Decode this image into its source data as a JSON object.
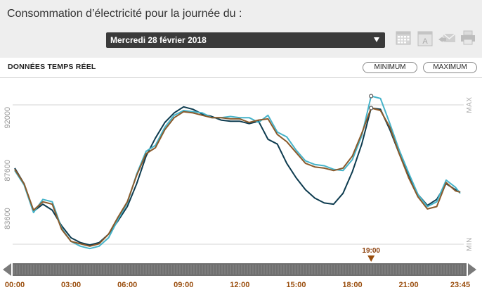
{
  "header": {
    "title": "Consommation d’électricité pour la journée du :",
    "date_selected": "Mercredi 28 février 2018"
  },
  "toolbar": {
    "icons": [
      "calendar-icon",
      "calendar-a-icon",
      "email-icon",
      "print-icon"
    ]
  },
  "panel": {
    "label": "DONNÉES TEMPS RÉEL",
    "minimum_label": "MINIMUM",
    "maximum_label": "MAXIMUM"
  },
  "colors": {
    "series_dark": "#0d3b4f",
    "series_light": "#46b3c9",
    "series_brown": "#8a5a2b",
    "time_accent": "#9a4e0e"
  },
  "chart_data": {
    "type": "line",
    "ylabel": "",
    "y_ticks": [
      "83600",
      "87600",
      "92000"
    ],
    "y_tick_values": [
      83600,
      87600,
      92000
    ],
    "y_edge_labels": {
      "max": "MAX",
      "min": "MIN"
    },
    "ylim": [
      80000,
      95000
    ],
    "x_ticks": [
      "00:00",
      "03:00",
      "06:00",
      "09:00",
      "12:00",
      "15:00",
      "18:00",
      "21:00",
      "23:45"
    ],
    "x_tick_hours": [
      0,
      3,
      6,
      9,
      12,
      15,
      18,
      21,
      23.75
    ],
    "xlim_hours": [
      0,
      23.75
    ],
    "marker": {
      "label": "19:00",
      "hour": 19
    },
    "series": [
      {
        "color_key": "series_dark",
        "points": [
          [
            0,
            87800
          ],
          [
            0.5,
            86500
          ],
          [
            1,
            84200
          ],
          [
            1.5,
            84800
          ],
          [
            2,
            84300
          ],
          [
            2.5,
            83000
          ],
          [
            3,
            82000
          ],
          [
            3.5,
            81600
          ],
          [
            4,
            81400
          ],
          [
            4.5,
            81600
          ],
          [
            5,
            82300
          ],
          [
            5.5,
            83400
          ],
          [
            6,
            84600
          ],
          [
            6.5,
            86500
          ],
          [
            7,
            88800
          ],
          [
            7.5,
            90300
          ],
          [
            8,
            91600
          ],
          [
            8.5,
            92400
          ],
          [
            9,
            92900
          ],
          [
            9.5,
            92700
          ],
          [
            10,
            92300
          ],
          [
            10.5,
            92100
          ],
          [
            11,
            91800
          ],
          [
            11.5,
            91700
          ],
          [
            12,
            91700
          ],
          [
            12.5,
            91500
          ],
          [
            13,
            91700
          ],
          [
            13.5,
            90200
          ],
          [
            14,
            89800
          ],
          [
            14.5,
            88200
          ],
          [
            15,
            87000
          ],
          [
            15.5,
            86000
          ],
          [
            16,
            85300
          ],
          [
            16.5,
            84900
          ],
          [
            17,
            84800
          ],
          [
            17.5,
            85700
          ],
          [
            18,
            87500
          ],
          [
            18.5,
            89800
          ],
          [
            19,
            92800
          ],
          [
            19.5,
            92700
          ],
          [
            20,
            91000
          ],
          [
            20.5,
            89000
          ],
          [
            21,
            87200
          ],
          [
            21.5,
            85600
          ],
          [
            22,
            84700
          ],
          [
            22.5,
            85200
          ],
          [
            23,
            86500
          ],
          [
            23.5,
            86000
          ],
          [
            23.75,
            85800
          ]
        ]
      },
      {
        "color_key": "series_light",
        "points": [
          [
            0,
            87600
          ],
          [
            0.5,
            86400
          ],
          [
            1,
            84100
          ],
          [
            1.5,
            85200
          ],
          [
            2,
            85000
          ],
          [
            2.5,
            82800
          ],
          [
            3,
            81700
          ],
          [
            3.5,
            81300
          ],
          [
            4,
            81100
          ],
          [
            4.5,
            81300
          ],
          [
            5,
            82000
          ],
          [
            5.5,
            83500
          ],
          [
            6,
            84900
          ],
          [
            6.5,
            87300
          ],
          [
            7,
            89200
          ],
          [
            7.5,
            89700
          ],
          [
            8,
            91200
          ],
          [
            8.5,
            92200
          ],
          [
            9,
            92600
          ],
          [
            9.5,
            92500
          ],
          [
            10,
            92400
          ],
          [
            10.5,
            92000
          ],
          [
            11,
            92000
          ],
          [
            11.5,
            92100
          ],
          [
            12,
            92000
          ],
          [
            12.5,
            92000
          ],
          [
            13,
            91600
          ],
          [
            13.5,
            92200
          ],
          [
            14,
            90800
          ],
          [
            14.5,
            90400
          ],
          [
            15,
            89300
          ],
          [
            15.5,
            88400
          ],
          [
            16,
            88100
          ],
          [
            16.5,
            88000
          ],
          [
            17,
            87700
          ],
          [
            17.5,
            87600
          ],
          [
            18,
            88500
          ],
          [
            18.5,
            90500
          ],
          [
            19,
            93800
          ],
          [
            19.5,
            93600
          ],
          [
            20,
            91500
          ],
          [
            20.5,
            89300
          ],
          [
            21,
            87400
          ],
          [
            21.5,
            85600
          ],
          [
            22,
            84600
          ],
          [
            22.5,
            85000
          ],
          [
            23,
            86800
          ],
          [
            23.5,
            86200
          ],
          [
            23.75,
            85700
          ]
        ]
      },
      {
        "color_key": "series_brown",
        "points": [
          [
            0,
            87700
          ],
          [
            0.5,
            86500
          ],
          [
            1,
            84300
          ],
          [
            1.5,
            85000
          ],
          [
            2,
            84800
          ],
          [
            2.5,
            82700
          ],
          [
            3,
            81700
          ],
          [
            3.5,
            81500
          ],
          [
            4,
            81300
          ],
          [
            4.5,
            81500
          ],
          [
            5,
            82300
          ],
          [
            5.5,
            83700
          ],
          [
            6,
            85000
          ],
          [
            6.5,
            87200
          ],
          [
            7,
            89000
          ],
          [
            7.5,
            89500
          ],
          [
            8,
            91000
          ],
          [
            8.5,
            92000
          ],
          [
            9,
            92500
          ],
          [
            9.5,
            92400
          ],
          [
            10,
            92200
          ],
          [
            10.5,
            92000
          ],
          [
            11,
            92000
          ],
          [
            11.5,
            91900
          ],
          [
            12,
            91900
          ],
          [
            12.5,
            91600
          ],
          [
            13,
            91800
          ],
          [
            13.5,
            91900
          ],
          [
            14,
            90600
          ],
          [
            14.5,
            90000
          ],
          [
            15,
            89100
          ],
          [
            15.5,
            88200
          ],
          [
            16,
            87900
          ],
          [
            16.5,
            87800
          ],
          [
            17,
            87600
          ],
          [
            17.5,
            87800
          ],
          [
            18,
            88800
          ],
          [
            18.5,
            90700
          ],
          [
            19,
            92800
          ],
          [
            19.5,
            92600
          ],
          [
            20,
            91200
          ],
          [
            20.5,
            89000
          ],
          [
            21,
            87000
          ],
          [
            21.5,
            85400
          ],
          [
            22,
            84400
          ],
          [
            22.5,
            84600
          ],
          [
            23,
            86600
          ],
          [
            23.5,
            85900
          ],
          [
            23.75,
            85800
          ]
        ]
      }
    ]
  }
}
